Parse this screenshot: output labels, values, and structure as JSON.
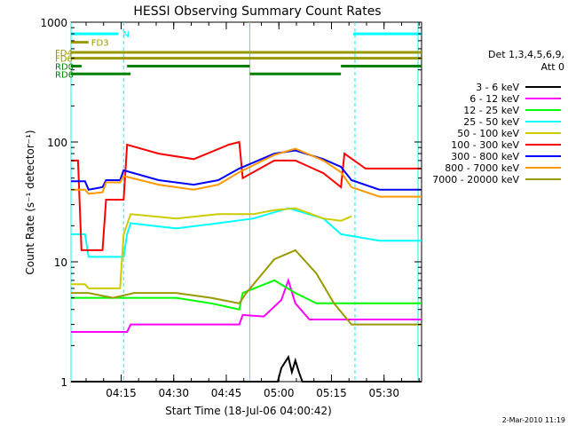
{
  "chart_data": {
    "type": "line",
    "title": "HESSI Observing Summary Count Rates",
    "xlabel": "Start Time (18-Jul-06 04:00:42)",
    "ylabel": "Count Rate (s⁻¹ detector⁻¹)",
    "yscale": "log",
    "ylim": [
      1,
      1000
    ],
    "xlim_minutes": [
      0,
      100
    ],
    "x_ticks": [
      "04:15",
      "04:30",
      "04:45",
      "05:00",
      "05:15",
      "05:30"
    ],
    "y_ticks": [
      "1",
      "10",
      "100",
      "1000"
    ],
    "legend_header": [
      "Det 1,3,4,5,6,9,",
      "Att 0"
    ],
    "legend_position": "right",
    "footer_date": "2-Mar-2010 11:19",
    "series": [
      {
        "name": "3 - 6 keV",
        "color": "#000000",
        "points": [
          [
            0,
            1
          ],
          [
            59,
            1
          ],
          [
            60,
            1.3
          ],
          [
            62,
            1.6
          ],
          [
            63,
            1.2
          ],
          [
            64,
            1.5
          ],
          [
            65,
            1.2
          ],
          [
            66,
            1
          ],
          [
            100,
            1
          ]
        ]
      },
      {
        "name": "6 - 12 keV",
        "color": "#ff00ff",
        "points": [
          [
            0,
            2.6
          ],
          [
            16,
            2.6
          ],
          [
            17,
            3.0
          ],
          [
            40,
            3.0
          ],
          [
            48,
            3.0
          ],
          [
            49,
            3.6
          ],
          [
            55,
            3.5
          ],
          [
            60,
            4.8
          ],
          [
            62,
            7.0
          ],
          [
            64,
            4.5
          ],
          [
            68,
            3.3
          ],
          [
            100,
            3.3
          ]
        ]
      },
      {
        "name": "12 - 25 keV",
        "color": "#00ff00",
        "points": [
          [
            0,
            5.0
          ],
          [
            30,
            5.0
          ],
          [
            40,
            4.5
          ],
          [
            48,
            4.0
          ],
          [
            49,
            5.5
          ],
          [
            58,
            7.0
          ],
          [
            64,
            5.5
          ],
          [
            70,
            4.5
          ],
          [
            100,
            4.5
          ]
        ]
      },
      {
        "name": "25 - 50 keV",
        "color": "#00ffff",
        "points": [
          [
            0,
            17
          ],
          [
            4,
            17
          ],
          [
            5,
            11
          ],
          [
            15,
            11
          ],
          [
            16,
            17
          ],
          [
            17,
            21
          ],
          [
            30,
            19
          ],
          [
            42,
            21
          ],
          [
            52,
            23
          ],
          [
            62,
            28
          ],
          [
            72,
            23
          ],
          [
            77,
            17
          ],
          [
            88,
            15
          ],
          [
            100,
            15
          ]
        ]
      },
      {
        "name": "50 - 100 keV",
        "color": "#cccc00",
        "points": [
          [
            0,
            6.5
          ],
          [
            4,
            6.5
          ],
          [
            5,
            6.0
          ],
          [
            14,
            6.0
          ],
          [
            15,
            17
          ],
          [
            17,
            25
          ],
          [
            30,
            23
          ],
          [
            42,
            25
          ],
          [
            52,
            25
          ],
          [
            58,
            27
          ],
          [
            64,
            28
          ],
          [
            72,
            23
          ],
          [
            77,
            22
          ],
          [
            80,
            24
          ]
        ]
      },
      {
        "name": "100 - 300 keV",
        "color": "#ff0000",
        "points": [
          [
            0,
            70
          ],
          [
            2,
            70
          ],
          [
            3,
            12.5
          ],
          [
            9,
            12.5
          ],
          [
            10,
            33
          ],
          [
            15,
            33
          ],
          [
            16,
            95
          ],
          [
            25,
            80
          ],
          [
            35,
            72
          ],
          [
            45,
            95
          ],
          [
            48,
            100
          ],
          [
            49,
            50
          ],
          [
            58,
            70
          ],
          [
            64,
            70
          ],
          [
            72,
            55
          ],
          [
            77,
            42
          ],
          [
            78,
            80
          ],
          [
            84,
            60
          ],
          [
            88,
            60
          ],
          [
            100,
            60
          ]
        ]
      },
      {
        "name": "300 - 800 keV",
        "color": "#0000ff",
        "points": [
          [
            0,
            47
          ],
          [
            4,
            47
          ],
          [
            5,
            40
          ],
          [
            9,
            42
          ],
          [
            10,
            48
          ],
          [
            14,
            48
          ],
          [
            15,
            58
          ],
          [
            25,
            48
          ],
          [
            35,
            44
          ],
          [
            42,
            48
          ],
          [
            48,
            60
          ],
          [
            58,
            80
          ],
          [
            64,
            85
          ],
          [
            72,
            72
          ],
          [
            77,
            62
          ],
          [
            80,
            48
          ],
          [
            88,
            40
          ],
          [
            100,
            40
          ]
        ]
      },
      {
        "name": "800 - 7000 keV",
        "color": "#ff9900",
        "points": [
          [
            0,
            40
          ],
          [
            4,
            40
          ],
          [
            5,
            37
          ],
          [
            9,
            38
          ],
          [
            10,
            46
          ],
          [
            14,
            46
          ],
          [
            15,
            52
          ],
          [
            25,
            44
          ],
          [
            35,
            40
          ],
          [
            42,
            44
          ],
          [
            48,
            56
          ],
          [
            58,
            78
          ],
          [
            64,
            88
          ],
          [
            72,
            70
          ],
          [
            77,
            56
          ],
          [
            80,
            42
          ],
          [
            88,
            35
          ],
          [
            100,
            35
          ]
        ]
      },
      {
        "name": "7000 - 20000 keV",
        "color": "#999900",
        "points": [
          [
            0,
            5.5
          ],
          [
            5,
            5.5
          ],
          [
            12,
            5.0
          ],
          [
            18,
            5.5
          ],
          [
            30,
            5.5
          ],
          [
            40,
            5.0
          ],
          [
            48,
            4.5
          ],
          [
            50,
            5.5
          ],
          [
            58,
            10.5
          ],
          [
            64,
            12.5
          ],
          [
            70,
            8.0
          ],
          [
            75,
            4.5
          ],
          [
            80,
            3.0
          ],
          [
            100,
            3.0
          ]
        ]
      }
    ],
    "state_bars": [
      {
        "name": "N",
        "color": "#00ffff",
        "y": 800,
        "segments": [
          [
            0,
            13.5
          ],
          [
            80.5,
            100
          ]
        ]
      },
      {
        "name": "FD3",
        "color": "#999900",
        "y": 680,
        "segments": [
          [
            0,
            5
          ]
        ]
      },
      {
        "name": "FD4",
        "color": "#999900",
        "y": 560,
        "segments": [
          [
            0,
            100
          ]
        ]
      },
      {
        "name": "FD6",
        "color": "#999900",
        "y": 500,
        "segments": [
          [
            0,
            100
          ]
        ]
      },
      {
        "name": "RD0",
        "color": "#008000",
        "y": 430,
        "segments": [
          [
            0,
            3
          ],
          [
            16,
            51
          ],
          [
            77,
            100
          ]
        ]
      },
      {
        "name": "RD6",
        "color": "#008000",
        "y": 370,
        "segments": [
          [
            0,
            17
          ],
          [
            51,
            77
          ]
        ]
      }
    ],
    "cyan_markers_minutes": [
      0,
      15,
      51,
      81,
      99
    ]
  }
}
